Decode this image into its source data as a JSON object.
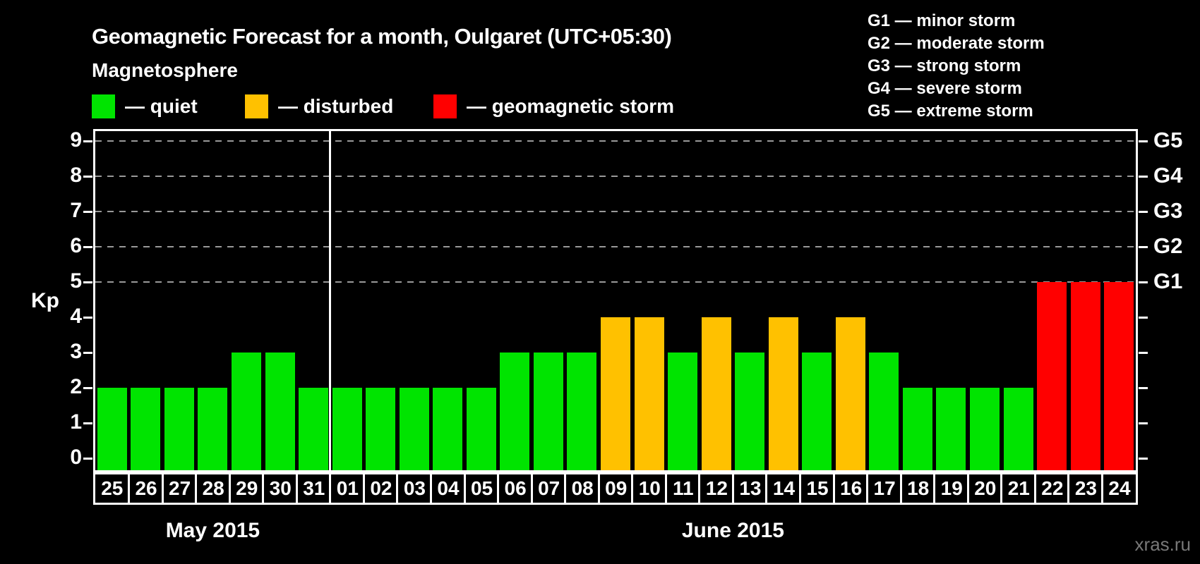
{
  "title": "Geomagnetic Forecast for a month, Oulgaret (UTC+05:30)",
  "subtitle": "Magnetosphere",
  "legend": [
    {
      "key": "quiet",
      "label": "— quiet",
      "color": "#00e400"
    },
    {
      "key": "disturbed",
      "label": "— disturbed",
      "color": "#ffc100"
    },
    {
      "key": "storm",
      "label": "— geomagnetic storm",
      "color": "#ff0000"
    }
  ],
  "g_scale_legend": [
    "G1 — minor storm",
    "G2 — moderate storm",
    "G3 — strong storm",
    "G4 — severe storm",
    "G5 — extreme storm"
  ],
  "watermark": "xras.ru",
  "chart_data": {
    "type": "bar",
    "title": "Geomagnetic Forecast for a month, Oulgaret (UTC+05:30)",
    "ylabel": "Kp",
    "ylim": [
      0,
      9
    ],
    "yticks": [
      0,
      1,
      2,
      3,
      4,
      5,
      6,
      7,
      8,
      9
    ],
    "right_axis": [
      {
        "kp": 5,
        "label": "G1"
      },
      {
        "kp": 6,
        "label": "G2"
      },
      {
        "kp": 7,
        "label": "G3"
      },
      {
        "kp": 8,
        "label": "G4"
      },
      {
        "kp": 9,
        "label": "G5"
      }
    ],
    "gridlines_kp": [
      5,
      6,
      7,
      8,
      9
    ],
    "grid": "dashed-g-levels-only",
    "legend_position": "top-left",
    "months": [
      {
        "label": "May 2015",
        "days": 7
      },
      {
        "label": "June 2015",
        "days": 24
      }
    ],
    "categories": [
      "25",
      "26",
      "27",
      "28",
      "29",
      "30",
      "31",
      "01",
      "02",
      "03",
      "04",
      "05",
      "06",
      "07",
      "08",
      "09",
      "10",
      "11",
      "12",
      "13",
      "14",
      "15",
      "16",
      "17",
      "18",
      "19",
      "20",
      "21",
      "22",
      "23",
      "24"
    ],
    "values": [
      2,
      2,
      2,
      2,
      3,
      3,
      2,
      2,
      2,
      2,
      2,
      2,
      3,
      3,
      3,
      4,
      4,
      3,
      4,
      3,
      4,
      3,
      4,
      3,
      2,
      2,
      2,
      2,
      5,
      5,
      5
    ],
    "statuses": [
      "quiet",
      "quiet",
      "quiet",
      "quiet",
      "quiet",
      "quiet",
      "quiet",
      "quiet",
      "quiet",
      "quiet",
      "quiet",
      "quiet",
      "quiet",
      "quiet",
      "quiet",
      "disturbed",
      "disturbed",
      "quiet",
      "disturbed",
      "quiet",
      "disturbed",
      "quiet",
      "disturbed",
      "quiet",
      "quiet",
      "quiet",
      "quiet",
      "quiet",
      "storm",
      "storm",
      "storm"
    ],
    "colors": {
      "quiet": "#00e400",
      "disturbed": "#ffc100",
      "storm": "#ff0000"
    }
  }
}
